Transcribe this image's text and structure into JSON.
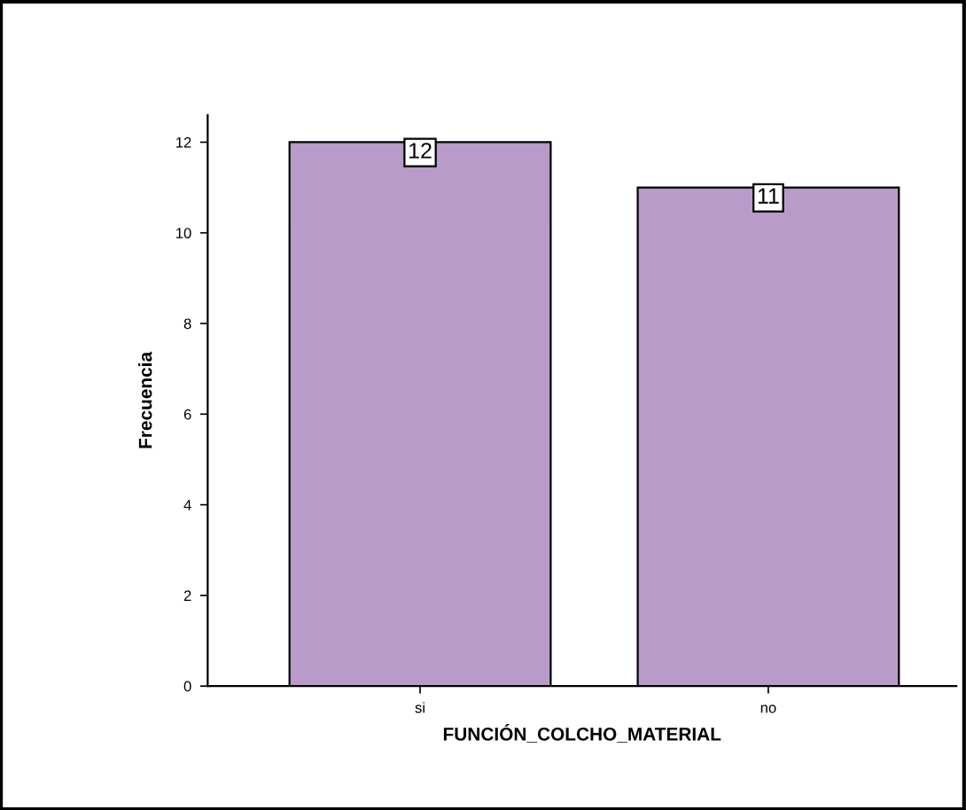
{
  "chart_data": {
    "type": "bar",
    "xlabel": "FUNCIÓN_COLCHO_MATERIAL",
    "ylabel": "Frecuencia",
    "categories": [
      "si",
      "no"
    ],
    "values": [
      12,
      11
    ],
    "color": "#b89bc9",
    "ylim": [
      0,
      12.6
    ],
    "yticks": [
      0,
      2,
      4,
      6,
      8,
      10,
      12
    ],
    "grid": false,
    "data_labels": true
  }
}
